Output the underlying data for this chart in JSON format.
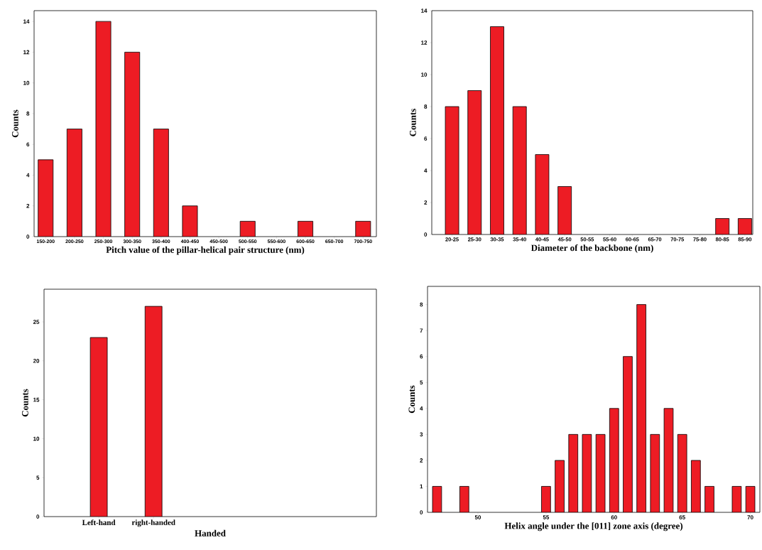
{
  "chart_data": [
    {
      "type": "bar",
      "xlabel": "Pitch value of the pillar-helical pair structure (nm)",
      "ylabel": "Counts",
      "categories": [
        "150-200",
        "200-250",
        "250-300",
        "300-350",
        "350-400",
        "400-450",
        "450-500",
        "500-550",
        "550-600",
        "600-650",
        "650-700",
        "700-750"
      ],
      "values": [
        5,
        7,
        14,
        12,
        7,
        2,
        0,
        1,
        0,
        1,
        0,
        1
      ],
      "color": "#ed1c24",
      "ylim": [
        0,
        14.7
      ],
      "yticks": [
        0,
        2,
        4,
        6,
        8,
        10,
        12,
        14
      ]
    },
    {
      "type": "bar",
      "xlabel": "Diameter of the backbone (nm)",
      "ylabel": "Counts",
      "categories": [
        "20-25",
        "25-30",
        "30-35",
        "35-40",
        "40-45",
        "45-50",
        "50-55",
        "55-60",
        "60-65",
        "65-70",
        "70-75",
        "75-80",
        "80-85",
        "85-90"
      ],
      "values": [
        8,
        9,
        13,
        8,
        5,
        3,
        0,
        0,
        0,
        0,
        0,
        0,
        1,
        1
      ],
      "color": "#ed1c24",
      "ylim": [
        0,
        14
      ],
      "yticks": [
        0,
        2,
        4,
        6,
        8,
        10,
        12,
        14
      ]
    },
    {
      "type": "bar",
      "xlabel": "Handed",
      "ylabel": "Counts",
      "categories": [
        "Left-hand",
        "right-handed"
      ],
      "values": [
        23,
        27
      ],
      "color": "#ed1c24",
      "ylim": [
        0,
        29.2
      ],
      "yticks": [
        0,
        5,
        10,
        15,
        20,
        25
      ]
    },
    {
      "type": "bar",
      "xlabel": "Helix angle under the [011] zone axis (degree)",
      "ylabel": "Counts",
      "x": [
        47,
        49,
        55,
        56,
        57,
        58,
        59,
        60,
        61,
        62,
        63,
        64,
        65,
        66,
        67,
        69,
        70
      ],
      "values": [
        1,
        1,
        1,
        2,
        3,
        3,
        3,
        4,
        6,
        8,
        3,
        4,
        3,
        2,
        1,
        1,
        1
      ],
      "color": "#ed1c24",
      "xlim": [
        46.3,
        70.7
      ],
      "xticks": [
        50,
        55,
        60,
        65,
        70
      ],
      "ylim": [
        0,
        8.7
      ],
      "yticks": [
        0,
        1,
        2,
        3,
        4,
        5,
        6,
        7,
        8
      ]
    }
  ]
}
